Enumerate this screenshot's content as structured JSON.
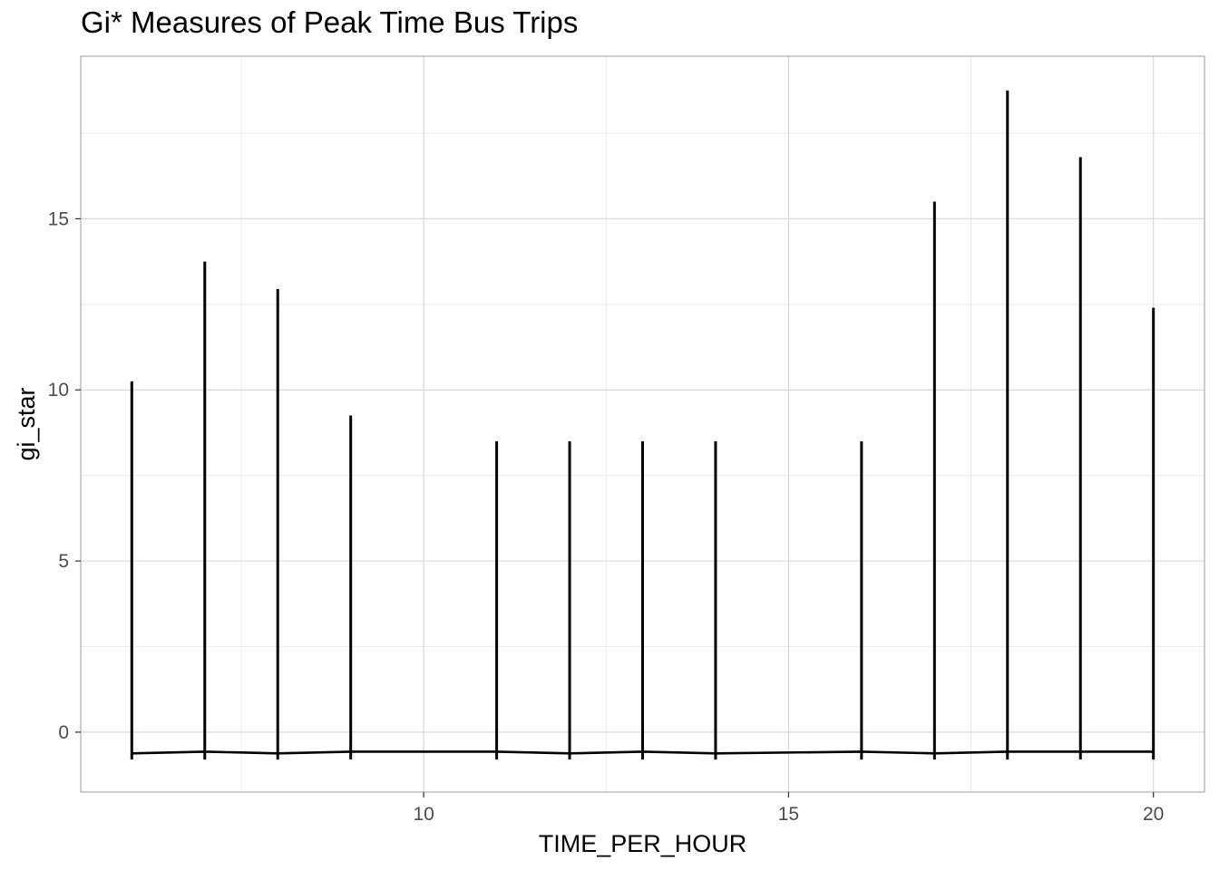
{
  "chart_data": {
    "type": "line",
    "title": "Gi* Measures of Peak Time Bus Trips",
    "xlabel": "TIME_PER_HOUR",
    "ylabel": "gi_star",
    "xlim": [
      5.3,
      20.7
    ],
    "ylim": [
      -1.75,
      19.75
    ],
    "x_ticks": [
      10,
      15,
      20
    ],
    "y_ticks": [
      0,
      5,
      10,
      15
    ],
    "grid": true,
    "series": [
      {
        "x": [
          6,
          7,
          8,
          9,
          11,
          12,
          13,
          14,
          16,
          17,
          18,
          19,
          20
        ],
        "max": [
          10.25,
          13.75,
          12.95,
          9.25,
          8.5,
          8.5,
          8.5,
          8.5,
          8.5,
          15.5,
          18.75,
          16.8,
          12.4
        ],
        "min": [
          -0.8,
          -0.8,
          -0.8,
          -0.8,
          -0.8,
          -0.8,
          -0.8,
          -0.8,
          -0.8,
          -0.8,
          -0.8,
          -0.8,
          -0.8
        ],
        "connector": [
          -0.62,
          -0.57,
          -0.62,
          -0.57,
          -0.57,
          -0.62,
          -0.57,
          -0.62,
          -0.57,
          -0.62,
          -0.57,
          -0.57,
          -0.57
        ]
      }
    ],
    "colors": {
      "line": "#000000",
      "grid_major": "#d9d9d9",
      "grid_minor": "#ececec",
      "border": "#b3b3b3",
      "tick_text": "#4d4d4d"
    }
  }
}
